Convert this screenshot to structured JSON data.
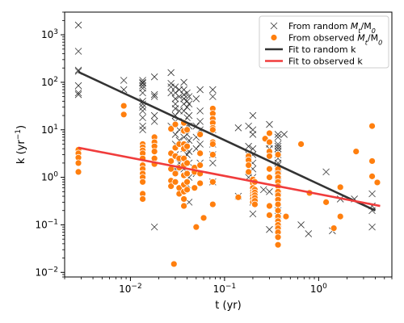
{
  "chart_data": {
    "type": "scatter",
    "xlabel": "t (yr)",
    "ylabel": "k (yr$^{-1}$)",
    "xscale": "log",
    "yscale": "log",
    "xlim": [
      0.002,
      6
    ],
    "ylim": [
      0.008,
      3000
    ],
    "x_ticks": [
      0.01,
      0.1,
      1
    ],
    "x_tick_labels": [
      "10$^{-2}$",
      "10$^{-1}$",
      "10$^{0}$"
    ],
    "y_ticks": [
      0.01,
      0.1,
      1,
      10,
      100,
      1000
    ],
    "y_tick_labels": [
      "10$^{-2}$",
      "10$^{-1}$",
      "10$^{0}$",
      "10$^{1}$",
      "10$^{2}$",
      "10$^{3}$"
    ],
    "legend_position": "top-right",
    "series": [
      {
        "name": "From random $M_t/M_0$",
        "kind": "scatter",
        "marker": "x",
        "color": "#333333",
        "points": [
          [
            0.0028,
            1600
          ],
          [
            0.0028,
            450
          ],
          [
            0.0028,
            180
          ],
          [
            0.0028,
            170
          ],
          [
            0.0028,
            85
          ],
          [
            0.0028,
            60
          ],
          [
            0.0028,
            55
          ],
          [
            0.0085,
            110
          ],
          [
            0.0085,
            70
          ],
          [
            0.0135,
            110
          ],
          [
            0.0135,
            100
          ],
          [
            0.0135,
            95
          ],
          [
            0.0135,
            85
          ],
          [
            0.0135,
            75
          ],
          [
            0.0135,
            60
          ],
          [
            0.0135,
            40
          ],
          [
            0.0135,
            35
          ],
          [
            0.0135,
            30
          ],
          [
            0.0135,
            25
          ],
          [
            0.0135,
            18
          ],
          [
            0.0135,
            12
          ],
          [
            0.0135,
            10
          ],
          [
            0.018,
            130
          ],
          [
            0.018,
            55
          ],
          [
            0.018,
            50
          ],
          [
            0.018,
            20
          ],
          [
            0.018,
            15
          ],
          [
            0.018,
            0.09
          ],
          [
            0.027,
            160
          ],
          [
            0.027,
            95
          ],
          [
            0.027,
            80
          ],
          [
            0.027,
            60
          ],
          [
            0.027,
            12
          ],
          [
            0.03,
            80
          ],
          [
            0.03,
            60
          ],
          [
            0.03,
            45
          ],
          [
            0.03,
            35
          ],
          [
            0.03,
            28
          ],
          [
            0.03,
            20
          ],
          [
            0.03,
            15
          ],
          [
            0.03,
            8
          ],
          [
            0.03,
            5
          ],
          [
            0.03,
            3
          ],
          [
            0.03,
            1.5
          ],
          [
            0.033,
            70
          ],
          [
            0.033,
            50
          ],
          [
            0.033,
            25
          ],
          [
            0.033,
            10
          ],
          [
            0.033,
            6
          ],
          [
            0.033,
            2
          ],
          [
            0.037,
            100
          ],
          [
            0.037,
            70
          ],
          [
            0.037,
            55
          ],
          [
            0.037,
            45
          ],
          [
            0.037,
            35
          ],
          [
            0.037,
            25
          ],
          [
            0.037,
            15
          ],
          [
            0.037,
            10
          ],
          [
            0.037,
            7
          ],
          [
            0.037,
            4
          ],
          [
            0.037,
            2.5
          ],
          [
            0.037,
            1.5
          ],
          [
            0.04,
            60
          ],
          [
            0.04,
            40
          ],
          [
            0.04,
            30
          ],
          [
            0.04,
            18
          ],
          [
            0.04,
            12
          ],
          [
            0.04,
            8
          ],
          [
            0.04,
            5
          ],
          [
            0.04,
            3
          ],
          [
            0.04,
            0.7
          ],
          [
            0.042,
            50
          ],
          [
            0.042,
            35
          ],
          [
            0.042,
            20
          ],
          [
            0.042,
            12
          ],
          [
            0.042,
            6
          ],
          [
            0.042,
            3.5
          ],
          [
            0.042,
            2
          ],
          [
            0.042,
            1
          ],
          [
            0.042,
            0.3
          ],
          [
            0.05,
            45
          ],
          [
            0.05,
            12
          ],
          [
            0.05,
            7
          ],
          [
            0.05,
            4
          ],
          [
            0.05,
            1.2
          ],
          [
            0.055,
            70
          ],
          [
            0.055,
            25
          ],
          [
            0.055,
            15
          ],
          [
            0.055,
            10
          ],
          [
            0.055,
            5
          ],
          [
            0.055,
            2
          ],
          [
            0.075,
            70
          ],
          [
            0.075,
            50
          ],
          [
            0.075,
            20
          ],
          [
            0.075,
            10
          ],
          [
            0.075,
            5
          ],
          [
            0.075,
            3
          ],
          [
            0.075,
            2
          ],
          [
            0.075,
            0.8
          ],
          [
            0.14,
            11
          ],
          [
            0.14,
            0.4
          ],
          [
            0.18,
            12
          ],
          [
            0.18,
            4.5
          ],
          [
            0.18,
            3
          ],
          [
            0.18,
            2
          ],
          [
            0.18,
            1.5
          ],
          [
            0.18,
            1
          ],
          [
            0.2,
            20
          ],
          [
            0.2,
            10
          ],
          [
            0.2,
            8
          ],
          [
            0.2,
            4
          ],
          [
            0.2,
            3
          ],
          [
            0.2,
            2
          ],
          [
            0.2,
            1.5
          ],
          [
            0.2,
            1
          ],
          [
            0.2,
            0.7
          ],
          [
            0.2,
            0.5
          ],
          [
            0.2,
            0.3
          ],
          [
            0.2,
            0.17
          ],
          [
            0.26,
            0.55
          ],
          [
            0.3,
            13
          ],
          [
            0.3,
            5
          ],
          [
            0.3,
            4
          ],
          [
            0.3,
            0.5
          ],
          [
            0.3,
            0.08
          ],
          [
            0.37,
            8
          ],
          [
            0.37,
            7
          ],
          [
            0.37,
            5
          ],
          [
            0.37,
            4.5
          ],
          [
            0.37,
            4
          ],
          [
            0.37,
            3.5
          ],
          [
            0.37,
            3
          ],
          [
            0.37,
            2.5
          ],
          [
            0.37,
            2
          ],
          [
            0.37,
            1.8
          ],
          [
            0.37,
            1.5
          ],
          [
            0.37,
            1.2
          ],
          [
            0.37,
            1
          ],
          [
            0.37,
            0.8
          ],
          [
            0.37,
            0.6
          ],
          [
            0.37,
            0.4
          ],
          [
            0.37,
            0.3
          ],
          [
            0.37,
            0.2
          ],
          [
            0.37,
            0.12
          ],
          [
            0.37,
            0.08
          ],
          [
            0.43,
            8
          ],
          [
            0.65,
            0.1
          ],
          [
            0.78,
            0.065
          ],
          [
            1.2,
            1.3
          ],
          [
            1.4,
            0.075
          ],
          [
            1.7,
            0.35
          ],
          [
            2.4,
            0.35
          ],
          [
            3.7,
            0.45
          ],
          [
            3.7,
            0.25
          ],
          [
            3.7,
            0.2
          ],
          [
            3.7,
            0.09
          ]
        ]
      },
      {
        "name": "From observed $M_t/M_0$",
        "kind": "scatter",
        "marker": "circle",
        "color": "#ff7f0e",
        "points": [
          [
            0.0028,
            3.8
          ],
          [
            0.0028,
            3.2
          ],
          [
            0.0028,
            2.6
          ],
          [
            0.0028,
            2
          ],
          [
            0.0028,
            1.3
          ],
          [
            0.0085,
            32
          ],
          [
            0.0085,
            21
          ],
          [
            0.0135,
            5
          ],
          [
            0.0135,
            4.3
          ],
          [
            0.0135,
            3.7
          ],
          [
            0.0135,
            3.2
          ],
          [
            0.0135,
            2.5
          ],
          [
            0.0135,
            1.8
          ],
          [
            0.0135,
            1.5
          ],
          [
            0.0135,
            1.2
          ],
          [
            0.0135,
            1
          ],
          [
            0.0135,
            0.8
          ],
          [
            0.0135,
            0.45
          ],
          [
            0.0135,
            0.35
          ],
          [
            0.018,
            7
          ],
          [
            0.018,
            5.5
          ],
          [
            0.018,
            4.5
          ],
          [
            0.018,
            3.5
          ],
          [
            0.018,
            2.5
          ],
          [
            0.018,
            1.9
          ],
          [
            0.027,
            10.5
          ],
          [
            0.027,
            3.2
          ],
          [
            0.027,
            2.2
          ],
          [
            0.027,
            1.5
          ],
          [
            0.027,
            0.85
          ],
          [
            0.027,
            0.65
          ],
          [
            0.029,
            0.015
          ],
          [
            0.03,
            13
          ],
          [
            0.03,
            4.2
          ],
          [
            0.03,
            2.8
          ],
          [
            0.03,
            1.2
          ],
          [
            0.03,
            0.8
          ],
          [
            0.033,
            5
          ],
          [
            0.033,
            2.5
          ],
          [
            0.033,
            1.6
          ],
          [
            0.033,
            0.6
          ],
          [
            0.033,
            0.45
          ],
          [
            0.037,
            14
          ],
          [
            0.037,
            9.5
          ],
          [
            0.037,
            5
          ],
          [
            0.037,
            4
          ],
          [
            0.037,
            2.5
          ],
          [
            0.037,
            1.8
          ],
          [
            0.037,
            1.1
          ],
          [
            0.037,
            0.7
          ],
          [
            0.037,
            0.5
          ],
          [
            0.037,
            0.35
          ],
          [
            0.037,
            0.25
          ],
          [
            0.04,
            10
          ],
          [
            0.04,
            4.5
          ],
          [
            0.04,
            2
          ],
          [
            0.04,
            1.2
          ],
          [
            0.04,
            0.8
          ],
          [
            0.04,
            0.55
          ],
          [
            0.048,
            1.6
          ],
          [
            0.048,
            1.3
          ],
          [
            0.048,
            0.6
          ],
          [
            0.05,
            0.09
          ],
          [
            0.055,
            8
          ],
          [
            0.055,
            3.2
          ],
          [
            0.055,
            1.8
          ],
          [
            0.055,
            1.2
          ],
          [
            0.055,
            0.75
          ],
          [
            0.06,
            0.14
          ],
          [
            0.075,
            28
          ],
          [
            0.075,
            22
          ],
          [
            0.075,
            17
          ],
          [
            0.075,
            14
          ],
          [
            0.075,
            11
          ],
          [
            0.075,
            10
          ],
          [
            0.075,
            5.5
          ],
          [
            0.075,
            5
          ],
          [
            0.075,
            3
          ],
          [
            0.075,
            0.8
          ],
          [
            0.075,
            0.27
          ],
          [
            0.14,
            0.38
          ],
          [
            0.18,
            2.8
          ],
          [
            0.18,
            2.3
          ],
          [
            0.18,
            1.8
          ],
          [
            0.18,
            1.3
          ],
          [
            0.2,
            0.9
          ],
          [
            0.2,
            0.75
          ],
          [
            0.2,
            0.6
          ],
          [
            0.2,
            0.5
          ],
          [
            0.2,
            0.45
          ],
          [
            0.2,
            0.4
          ],
          [
            0.2,
            0.35
          ],
          [
            0.2,
            0.3
          ],
          [
            0.21,
            0.8
          ],
          [
            0.21,
            0.55
          ],
          [
            0.21,
            0.48
          ],
          [
            0.21,
            0.42
          ],
          [
            0.21,
            0.37
          ],
          [
            0.21,
            0.32
          ],
          [
            0.21,
            0.27
          ],
          [
            0.27,
            6.5
          ],
          [
            0.3,
            8.5
          ],
          [
            0.3,
            5.5
          ],
          [
            0.3,
            3.5
          ],
          [
            0.3,
            2.8
          ],
          [
            0.3,
            1.5
          ],
          [
            0.3,
            1
          ],
          [
            0.3,
            0.25
          ],
          [
            0.3,
            0.16
          ],
          [
            0.37,
            3
          ],
          [
            0.37,
            1.5
          ],
          [
            0.37,
            1.2
          ],
          [
            0.37,
            1
          ],
          [
            0.37,
            0.8
          ],
          [
            0.37,
            0.65
          ],
          [
            0.37,
            0.5
          ],
          [
            0.37,
            0.42
          ],
          [
            0.37,
            0.34
          ],
          [
            0.37,
            0.27
          ],
          [
            0.37,
            0.2
          ],
          [
            0.37,
            0.15
          ],
          [
            0.37,
            0.12
          ],
          [
            0.37,
            0.1
          ],
          [
            0.37,
            0.085
          ],
          [
            0.37,
            0.07
          ],
          [
            0.37,
            0.055
          ],
          [
            0.37,
            0.038
          ],
          [
            0.45,
            0.15
          ],
          [
            0.65,
            5
          ],
          [
            0.8,
            0.47
          ],
          [
            1.2,
            0.3
          ],
          [
            1.45,
            0.085
          ],
          [
            1.7,
            0.62
          ],
          [
            1.7,
            0.15
          ],
          [
            2.5,
            3.5
          ],
          [
            3.7,
            12
          ],
          [
            3.7,
            2.2
          ],
          [
            3.7,
            1.05
          ],
          [
            4.2,
            0.78
          ]
        ]
      },
      {
        "name": "Fit to random k",
        "kind": "line",
        "color": "#333333",
        "points": [
          [
            0.0028,
            165
          ],
          [
            4.0,
            0.2
          ]
        ]
      },
      {
        "name": "Fit to observed k",
        "kind": "line",
        "color": "#f03c3c",
        "points": [
          [
            0.0028,
            4.2
          ],
          [
            4.5,
            0.25
          ]
        ]
      }
    ]
  }
}
